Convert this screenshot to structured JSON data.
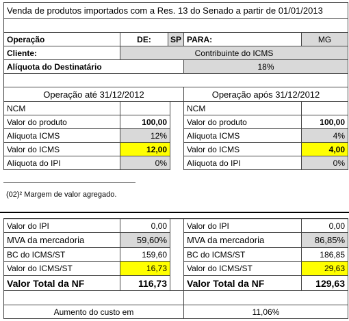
{
  "title": "Venda de produtos importados com a Res. 13 do Senado a partir de 01/01/2013",
  "operation": {
    "label": "Operação",
    "from_label": "DE:",
    "from": "SP",
    "to_label": "PARA:",
    "to": "MG"
  },
  "client": {
    "label": "Cliente:",
    "value": "Contribuinte do ICMS"
  },
  "destination_rate": {
    "label": "Alíquota do Destinatário",
    "value": "18%"
  },
  "before": {
    "heading": "Operação até 31/12/2012",
    "rows": [
      {
        "label": "NCM"
      },
      {
        "label": "Valor do produto",
        "value": "100,00"
      },
      {
        "label": "Alíquota ICMS",
        "value": "12%"
      },
      {
        "label": "Valor do ICMS",
        "value": "12,00"
      },
      {
        "label": "Alíquota do IPI",
        "value": "0%"
      }
    ]
  },
  "after": {
    "heading": "Operação após 31/12/2012",
    "rows": [
      {
        "label": "NCM"
      },
      {
        "label": "Valor do produto",
        "value": "100,00"
      },
      {
        "label": "Alíquota ICMS",
        "value": "4%"
      },
      {
        "label": "Valor do ICMS",
        "value": "4,00"
      },
      {
        "label": "Alíquota do IPI",
        "value": "0%"
      }
    ]
  },
  "footnote": "(02)² Margem de valor agregado.",
  "before_st": {
    "rows": [
      {
        "label": "Valor do IPI",
        "value": "0,00"
      },
      {
        "label": "MVA da mercadoria",
        "value": "59,60%"
      },
      {
        "label": "BC do ICMS/ST",
        "value": "159,60"
      },
      {
        "label": "Valor do ICMS/ST",
        "value": "16,73"
      },
      {
        "label": "Valor Total da NF",
        "value": "116,73"
      }
    ]
  },
  "after_st": {
    "rows": [
      {
        "label": "Valor do IPI",
        "value": "0,00"
      },
      {
        "label": "MVA da mercadoria",
        "value": "86,85%"
      },
      {
        "label": "BC do ICMS/ST",
        "value": "186,85"
      },
      {
        "label": "Valor do ICMS/ST",
        "value": "29,63"
      },
      {
        "label": "Valor Total da NF",
        "value": "129,63"
      }
    ]
  },
  "increase": {
    "label": "Aumento do custo em",
    "value": "11,06%"
  }
}
